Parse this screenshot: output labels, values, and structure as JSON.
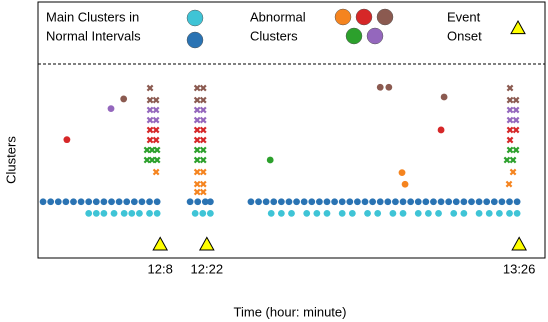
{
  "chart_data": {
    "type": "scatter",
    "xlabel": "Time (hour: minute)",
    "ylabel": "Clusters",
    "xlim": [
      0,
      100
    ],
    "ylim": [
      0,
      10
    ],
    "xticks": [
      {
        "value": 24.1,
        "label": "12:8"
      },
      {
        "value": 33.3,
        "label": "12:22"
      },
      {
        "value": 94.9,
        "label": "13:26"
      }
    ],
    "legend": [
      {
        "label_lines": [
          "Main Clusters in",
          "Normal Intervals"
        ],
        "colors": [
          "#3fc4d6",
          "#2a73b3"
        ]
      },
      {
        "label_lines": [
          "Abnormal",
          "Clusters"
        ],
        "colors": [
          "#f5841f",
          "#d62728",
          "#8b5a50",
          "#2ca02c",
          "#9467bd"
        ]
      },
      {
        "label_lines": [
          "Event",
          "Onset"
        ],
        "colors": [
          "#ffff00"
        ]
      }
    ],
    "series": [
      {
        "color": "#2a73b3",
        "marker": "circle",
        "x": [
          1,
          2.5,
          4,
          5.5,
          7,
          8.5,
          10,
          11.5,
          13,
          14.5,
          16,
          17.5,
          19,
          20.5,
          22,
          23.5,
          30,
          31.5,
          33,
          34,
          42,
          43.5,
          45,
          46.5,
          48,
          49.5,
          51,
          52.5,
          54,
          55.5,
          57,
          58.5,
          60,
          61.5,
          63,
          64.5,
          66,
          67.5,
          69,
          70.5,
          72,
          73.5,
          75,
          76.5,
          78,
          79.5,
          81,
          82.5,
          84,
          85.5,
          87,
          88.5,
          90,
          91.5,
          93,
          94.5
        ],
        "values": [
          2.9,
          2.9,
          2.9,
          2.9,
          2.9,
          2.9,
          2.9,
          2.9,
          2.9,
          2.9,
          2.9,
          2.9,
          2.9,
          2.9,
          2.9,
          2.9,
          2.9,
          2.9,
          2.9,
          2.9,
          2.9,
          2.9,
          2.9,
          2.9,
          2.9,
          2.9,
          2.9,
          2.9,
          2.9,
          2.9,
          2.9,
          2.9,
          2.9,
          2.9,
          2.9,
          2.9,
          2.9,
          2.9,
          2.9,
          2.9,
          2.9,
          2.9,
          2.9,
          2.9,
          2.9,
          2.9,
          2.9,
          2.9,
          2.9,
          2.9,
          2.9,
          2.9,
          2.9,
          2.9,
          2.9,
          2.9
        ]
      },
      {
        "color": "#3fc4d6",
        "marker": "circle",
        "x": [
          10,
          11.5,
          13,
          15,
          17,
          18.5,
          20,
          22,
          23.5,
          31,
          32.5,
          34,
          46,
          48,
          50,
          53,
          55,
          57,
          60,
          62,
          65,
          67,
          70,
          72,
          75,
          77,
          79,
          82,
          84,
          87,
          89,
          91,
          93,
          94.5
        ],
        "values": [
          2.3,
          2.3,
          2.3,
          2.3,
          2.3,
          2.3,
          2.3,
          2.3,
          2.3,
          2.3,
          2.3,
          2.3,
          2.3,
          2.3,
          2.3,
          2.3,
          2.3,
          2.3,
          2.3,
          2.3,
          2.3,
          2.3,
          2.3,
          2.3,
          2.3,
          2.3,
          2.3,
          2.3,
          2.3,
          2.3,
          2.3,
          2.3,
          2.3,
          2.3
        ]
      },
      {
        "color": "#d62728",
        "marker": "circle",
        "x": [
          5.7,
          79.5
        ],
        "values": [
          6.1,
          6.6
        ]
      },
      {
        "color": "#9467bd",
        "marker": "circle",
        "x": [
          14.4
        ],
        "values": [
          7.7
        ]
      },
      {
        "color": "#8b5a50",
        "marker": "circle",
        "x": [
          16.9,
          67.5,
          69.2,
          80.1
        ],
        "values": [
          8.2,
          8.8,
          8.8,
          8.3
        ]
      },
      {
        "color": "#2ca02c",
        "marker": "circle",
        "x": [
          45.8
        ],
        "values": [
          5.05
        ]
      },
      {
        "color": "#f5841f",
        "marker": "circle",
        "x": [
          71.8,
          72.4
        ],
        "values": [
          4.4,
          3.8
        ]
      },
      {
        "color": "#8b5a50",
        "marker": "cross",
        "x": [
          22.1,
          22.1,
          23.3,
          31.4,
          32.6,
          31.4,
          32.6,
          93.1,
          93.1,
          94.3
        ],
        "values": [
          8.76,
          8.14,
          8.14,
          8.76,
          8.76,
          8.14,
          8.14,
          8.76,
          8.14,
          8.14
        ]
      },
      {
        "color": "#9467bd",
        "marker": "cross",
        "x": [
          22.1,
          23.3,
          22.1,
          23.3,
          31.4,
          32.6,
          31.4,
          32.6,
          93.1,
          94.3,
          93.1,
          94.3
        ],
        "values": [
          7.63,
          7.63,
          7.11,
          7.11,
          7.63,
          7.63,
          7.11,
          7.11,
          7.63,
          7.63,
          7.11,
          7.11
        ]
      },
      {
        "color": "#d62728",
        "marker": "cross",
        "x": [
          22.1,
          23.3,
          22.1,
          23.3,
          31.4,
          32.6,
          31.4,
          32.6,
          93.1,
          94.3,
          93.1
        ],
        "values": [
          6.6,
          6.6,
          6.08,
          6.08,
          6.6,
          6.6,
          6.08,
          6.08,
          6.6,
          6.6,
          6.08
        ]
      },
      {
        "color": "#2ca02c",
        "marker": "cross",
        "x": [
          21.5,
          22.5,
          23.5,
          21.5,
          22.5,
          23.5,
          31.4,
          32.6,
          31.4,
          32.6,
          93.1,
          94.3,
          92.5,
          93.7
        ],
        "values": [
          5.57,
          5.57,
          5.57,
          5.05,
          5.05,
          5.05,
          5.57,
          5.57,
          5.05,
          5.05,
          5.57,
          5.57,
          5.05,
          5.05
        ]
      },
      {
        "color": "#f5841f",
        "marker": "cross",
        "x": [
          23.3,
          31.4,
          32.6,
          31.4,
          32.6,
          31.4,
          32.6,
          93.7,
          92.9
        ],
        "values": [
          4.43,
          4.43,
          4.43,
          3.81,
          3.81,
          3.4,
          3.4,
          4.43,
          3.81
        ]
      },
      {
        "color": "#ffff00",
        "marker": "triangle",
        "x": [
          24.1,
          33.3,
          94.9
        ],
        "values": [
          0.7,
          0.7,
          0.7
        ]
      }
    ]
  }
}
